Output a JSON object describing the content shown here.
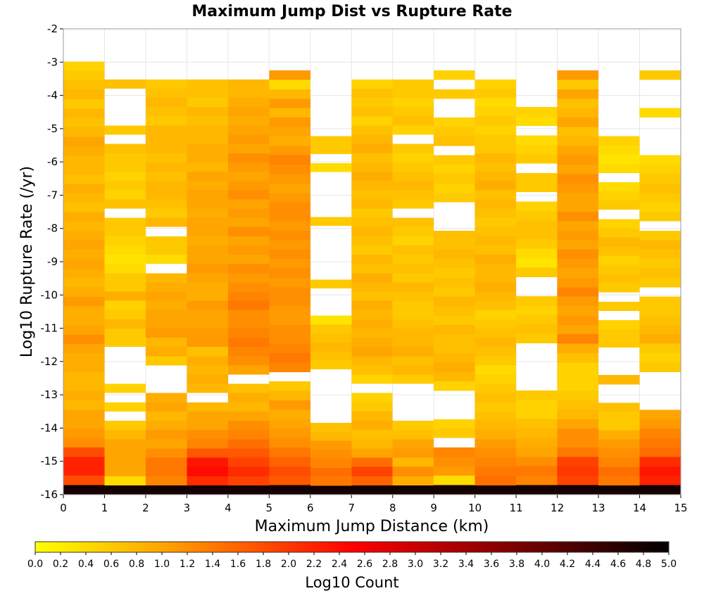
{
  "chart_data": {
    "type": "heatmap",
    "title": "Maximum Jump Dist vs Rupture Rate",
    "xlabel": "Maximum Jump Distance (km)",
    "ylabel": "Log10 Rupture Rate (/yr)",
    "colorbar_label": "Log10 Count",
    "xlim": [
      0,
      15
    ],
    "ylim": [
      -16,
      -2
    ],
    "x_ticks": [
      "0",
      "1",
      "2",
      "3",
      "4",
      "5",
      "6",
      "7",
      "8",
      "9",
      "10",
      "11",
      "12",
      "13",
      "14",
      "15"
    ],
    "y_ticks": [
      "-2",
      "-3",
      "-4",
      "-5",
      "-6",
      "-7",
      "-8",
      "-9",
      "-10",
      "-11",
      "-12",
      "-13",
      "-14",
      "-15",
      "-16"
    ],
    "colorbar_range": [
      0.0,
      5.0
    ],
    "colorbar_ticks": [
      "0.0",
      "0.2",
      "0.4",
      "0.6",
      "0.8",
      "1.0",
      "1.2",
      "1.4",
      "1.6",
      "1.8",
      "2.0",
      "2.2",
      "2.4",
      "2.6",
      "2.8",
      "3.0",
      "3.2",
      "3.4",
      "3.6",
      "3.8",
      "4.0",
      "4.2",
      "4.4",
      "4.6",
      "4.8",
      "5.0"
    ],
    "colors": [
      "#ffff00",
      "#ffa500",
      "#ff0000",
      "#000000"
    ],
    "x_bin_width": 1,
    "y_bin_width": 0.282,
    "y_bins_start": -16,
    "columns": [
      {
        "x": 0,
        "y_range": [
          -16,
          -2.98
        ],
        "values": [
          4.8,
          1.8,
          2.2,
          2.2,
          1.8,
          1.2,
          1.1,
          1.0,
          1.0,
          0.8,
          0.9,
          0.8,
          0.8,
          0.9,
          0.9,
          1.0,
          1.2,
          1.0,
          0.9,
          0.9,
          1.1,
          0.9,
          0.8,
          0.9,
          1.0,
          0.9,
          1.0,
          0.9,
          0.8,
          0.9,
          0.7,
          0.8,
          0.9,
          0.7,
          0.8,
          0.8,
          0.9,
          1.0,
          0.8,
          0.7,
          0.8,
          0.6,
          0.8,
          0.7,
          0.6,
          0.5
        ]
      },
      {
        "x": 1,
        "y_range": [
          -16,
          -3.52
        ],
        "values": [
          4.8,
          0.4,
          1.0,
          1.0,
          1.0,
          1.0,
          0.8,
          0.6,
          null,
          0.5,
          null,
          0.5,
          null,
          null,
          null,
          null,
          0.6,
          0.6,
          0.8,
          0.6,
          0.5,
          0.9,
          0.6,
          0.6,
          0.4,
          0.3,
          0.4,
          0.5,
          0.6,
          0.6,
          null,
          0.7,
          0.5,
          0.6,
          0.5,
          0.6,
          0.6,
          0.7,
          null,
          0.6,
          null,
          null,
          null,
          null,
          0.7
        ]
      },
      {
        "x": 2,
        "y_range": [
          -16,
          -3.52
        ],
        "values": [
          4.8,
          1.3,
          1.4,
          1.4,
          1.2,
          1.0,
          1.1,
          0.9,
          0.8,
          1.0,
          0.9,
          null,
          null,
          null,
          0.6,
          0.9,
          0.8,
          1.1,
          1.0,
          1.0,
          0.9,
          1.0,
          0.9,
          0.8,
          null,
          0.4,
          0.6,
          0.6,
          null,
          0.8,
          0.6,
          0.7,
          0.8,
          0.8,
          0.7,
          0.8,
          0.7,
          0.8,
          0.8,
          0.8,
          0.6,
          0.7,
          0.8,
          0.7,
          0.6
        ]
      },
      {
        "x": 3,
        "y_range": [
          -16,
          -3.52
        ],
        "values": [
          4.8,
          2.1,
          2.4,
          2.3,
          1.7,
          1.3,
          1.2,
          1.0,
          1.0,
          0.8,
          null,
          0.8,
          0.9,
          0.8,
          0.9,
          0.7,
          1.1,
          1.1,
          1.0,
          1.0,
          1.1,
          0.9,
          0.9,
          1.0,
          1.1,
          1.0,
          1.0,
          0.9,
          1.0,
          1.0,
          0.9,
          1.0,
          1.0,
          0.9,
          1.0,
          0.8,
          0.9,
          0.9,
          0.8,
          0.8,
          0.7,
          0.8,
          0.6,
          0.7,
          0.7
        ]
      },
      {
        "x": 4,
        "y_range": [
          -16,
          -3.52
        ],
        "values": [
          4.8,
          1.9,
          2.1,
          1.9,
          1.7,
          1.5,
          1.3,
          1.2,
          1.0,
          0.8,
          0.9,
          0.7,
          null,
          1.0,
          1.2,
          1.3,
          1.4,
          1.3,
          1.2,
          1.2,
          1.4,
          1.3,
          1.2,
          1.1,
          1.2,
          1.0,
          1.1,
          1.0,
          1.2,
          1.0,
          1.1,
          1.0,
          1.2,
          1.1,
          1.0,
          1.1,
          1.2,
          1.0,
          1.1,
          1.0,
          0.9,
          1.0,
          0.9,
          0.8,
          0.8
        ]
      },
      {
        "x": 5,
        "y_range": [
          -16,
          -3.25
        ],
        "values": [
          4.8,
          1.7,
          1.8,
          1.6,
          1.4,
          1.2,
          1.1,
          1.0,
          0.9,
          1.1,
          0.8,
          0.6,
          null,
          1.3,
          1.4,
          1.3,
          1.2,
          1.2,
          1.1,
          1.1,
          1.2,
          1.2,
          1.1,
          1.2,
          1.1,
          1.2,
          1.1,
          1.2,
          1.1,
          1.2,
          1.2,
          1.1,
          1.0,
          1.1,
          1.2,
          1.3,
          1.1,
          0.9,
          1.0,
          1.1,
          0.8,
          1.1,
          0.8,
          0.4,
          1.1
        ]
      },
      {
        "x": 6,
        "y_range": [
          -16,
          -5.23
        ],
        "values": [
          4.8,
          1.4,
          1.5,
          1.3,
          1.2,
          1.1,
          0.8,
          0.7,
          null,
          null,
          null,
          null,
          null,
          null,
          0.6,
          0.7,
          0.8,
          0.7,
          0.6,
          0.3,
          null,
          null,
          null,
          0.6,
          null,
          null,
          null,
          null,
          null,
          null,
          0.6,
          null,
          null,
          null,
          null,
          null,
          0.4,
          null,
          0.6,
          0.6
        ]
      },
      {
        "x": 7,
        "y_range": [
          -16,
          -3.52
        ],
        "values": [
          4.8,
          1.6,
          1.9,
          1.5,
          1.0,
          0.8,
          0.7,
          0.9,
          0.8,
          0.6,
          0.5,
          null,
          0.5,
          0.7,
          0.8,
          1.0,
          0.9,
          0.8,
          0.9,
          0.8,
          0.9,
          0.7,
          0.8,
          0.9,
          0.7,
          0.8,
          0.6,
          0.7,
          0.8,
          0.7,
          0.6,
          0.8,
          0.7,
          0.8,
          0.9,
          0.8,
          0.7,
          0.9,
          0.8,
          0.7,
          0.5,
          0.7,
          0.6,
          0.7,
          0.5
        ]
      },
      {
        "x": 8,
        "y_range": [
          -16,
          -3.52
        ],
        "values": [
          4.8,
          0.9,
          1.2,
          0.8,
          1.1,
          1.0,
          0.7,
          0.6,
          null,
          null,
          null,
          null,
          0.6,
          0.8,
          0.7,
          0.9,
          0.8,
          0.8,
          0.7,
          0.6,
          0.6,
          0.7,
          0.8,
          0.6,
          0.7,
          0.6,
          0.7,
          0.5,
          0.6,
          0.7,
          null,
          0.6,
          0.7,
          0.8,
          0.7,
          0.6,
          0.5,
          0.6,
          null,
          0.5,
          0.7,
          0.6,
          0.5,
          0.6,
          0.6
        ]
      },
      {
        "x": 9,
        "y_range": [
          -16,
          -3.25
        ],
        "values": [
          4.8,
          0.4,
          1.1,
          1.2,
          1.3,
          null,
          0.6,
          0.5,
          null,
          null,
          null,
          0.5,
          0.8,
          0.9,
          0.8,
          0.7,
          0.7,
          0.8,
          0.6,
          0.7,
          0.8,
          0.6,
          0.7,
          0.6,
          0.7,
          0.8,
          0.7,
          0.7,
          null,
          null,
          null,
          0.6,
          0.5,
          0.6,
          0.5,
          0.6,
          null,
          0.7,
          0.6,
          0.5,
          null,
          null,
          0.6,
          null,
          0.5
        ]
      },
      {
        "x": 10,
        "y_range": [
          -16,
          -3.52
        ],
        "values": [
          4.8,
          1.5,
          1.4,
          1.3,
          1.2,
          1.1,
          0.9,
          0.8,
          0.7,
          0.6,
          0.7,
          0.6,
          0.5,
          0.4,
          0.6,
          0.7,
          0.8,
          0.7,
          0.6,
          0.5,
          0.7,
          0.8,
          0.9,
          0.8,
          0.8,
          0.9,
          0.7,
          0.8,
          0.7,
          0.6,
          0.7,
          0.8,
          0.7,
          0.9,
          0.8,
          0.7,
          0.8,
          0.6,
          0.6,
          0.5,
          0.6,
          0.5,
          0.4,
          0.6,
          0.5
        ]
      },
      {
        "x": 11,
        "y_range": [
          -16,
          -4.35
        ],
        "values": [
          4.8,
          1.3,
          1.4,
          1.2,
          1.0,
          0.9,
          0.8,
          0.7,
          0.5,
          0.5,
          0.6,
          null,
          null,
          null,
          null,
          null,
          0.6,
          0.7,
          0.6,
          0.5,
          0.6,
          null,
          null,
          0.6,
          0.3,
          0.4,
          0.6,
          0.7,
          0.7,
          0.6,
          0.5,
          null,
          0.6,
          0.6,
          null,
          0.6,
          0.5,
          0.4,
          null,
          0.4,
          0.5
        ]
      },
      {
        "x": 12,
        "y_range": [
          -16,
          -3.25
        ],
        "values": [
          4.8,
          1.9,
          2.0,
          1.9,
          1.4,
          1.2,
          1.2,
          1.0,
          0.8,
          0.7,
          0.6,
          0.5,
          0.5,
          0.5,
          0.7,
          0.9,
          1.3,
          1.0,
          1.1,
          1.0,
          1.1,
          1.3,
          1.1,
          1.0,
          1.1,
          1.2,
          1.0,
          1.1,
          1.0,
          1.2,
          1.0,
          1.0,
          1.1,
          1.2,
          1.0,
          1.1,
          1.0,
          0.8,
          0.7,
          1.0,
          0.8,
          0.7,
          1.0,
          0.6,
          1.1
        ]
      },
      {
        "x": 13,
        "y_range": [
          -16,
          -5.23
        ],
        "values": [
          4.8,
          1.4,
          1.5,
          1.3,
          1.2,
          1.1,
          0.9,
          0.6,
          0.6,
          0.7,
          null,
          null,
          0.8,
          null,
          null,
          null,
          0.6,
          0.6,
          0.5,
          null,
          0.6,
          null,
          0.6,
          0.7,
          0.6,
          0.5,
          0.7,
          0.8,
          0.6,
          0.5,
          null,
          0.6,
          0.5,
          0.4,
          null,
          0.4,
          0.3,
          0.4,
          0.5
        ]
      },
      {
        "x": 14,
        "y_range": [
          -16,
          -3.25
        ],
        "values": [
          4.8,
          2.2,
          2.3,
          2.1,
          1.5,
          1.4,
          1.3,
          1.1,
          1.0,
          null,
          null,
          null,
          null,
          0.6,
          0.5,
          0.6,
          0.9,
          0.8,
          0.7,
          0.6,
          0.6,
          null,
          0.6,
          0.7,
          0.6,
          0.7,
          0.8,
          0.6,
          null,
          0.6,
          0.5,
          0.6,
          0.7,
          0.6,
          0.5,
          0.4,
          null,
          null,
          null,
          null,
          0.4,
          null,
          null,
          null,
          0.6
        ]
      }
    ]
  }
}
